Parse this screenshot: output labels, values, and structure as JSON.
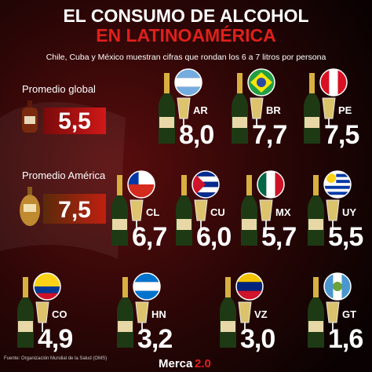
{
  "header": {
    "title_line1": "EL CONSUMO DE ALCOHOL",
    "title_line2": "EN LATINOAMÉRICA",
    "subtitle": "Chile, Cuba y México muestran cifras que rondan los 6 a 7 litros por persona"
  },
  "averages": [
    {
      "label": "Promedio global",
      "value": "5,5"
    },
    {
      "label": "Promedio América",
      "value": "7,5"
    }
  ],
  "countries": [
    {
      "code": "AR",
      "value": "8,0"
    },
    {
      "code": "BR",
      "value": "7,7"
    },
    {
      "code": "PE",
      "value": "7,5"
    },
    {
      "code": "CL",
      "value": "6,7"
    },
    {
      "code": "CU",
      "value": "6,0"
    },
    {
      "code": "MX",
      "value": "5,7"
    },
    {
      "code": "UY",
      "value": "5,5"
    },
    {
      "code": "CO",
      "value": "4,9"
    },
    {
      "code": "HN",
      "value": "3,2"
    },
    {
      "code": "VZ",
      "value": "3,0"
    },
    {
      "code": "GT",
      "value": "1,6"
    }
  ],
  "footer": {
    "source": "Fuente: Organización Mundial de la Salud (OMS)",
    "logo_main": "Merca",
    "logo_accent": "2.0"
  }
}
